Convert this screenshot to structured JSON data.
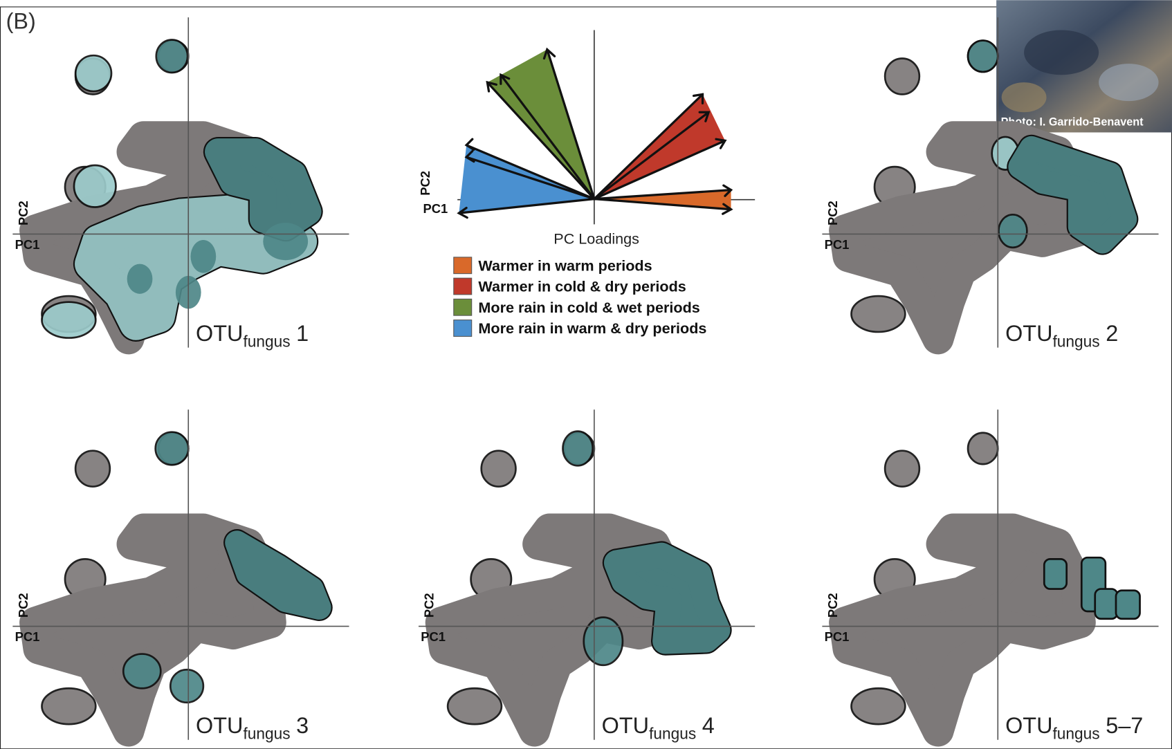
{
  "figure_label": "(B)",
  "photo_credit": "Photo: I. Garrido-Benavent",
  "axis_labels": {
    "y": "PC2",
    "x": "PC1"
  },
  "panels": [
    {
      "name": "OTU",
      "subscript": "fungus",
      "number": "1"
    },
    {
      "name": "OTU",
      "subscript": "fungus",
      "number": "2"
    },
    {
      "name": "OTU",
      "subscript": "fungus",
      "number": "3"
    },
    {
      "name": "OTU",
      "subscript": "fungus",
      "number": "4"
    },
    {
      "name": "OTU",
      "subscript": "fungus",
      "number": "5–7"
    }
  ],
  "loadings": {
    "title": "PC Loadings",
    "legend": [
      {
        "label": "Warmer in warm periods",
        "color": "#d9692a"
      },
      {
        "label": "Warmer in cold & dry periods",
        "color": "#c0392b"
      },
      {
        "label": "More rain in cold & wet periods",
        "color": "#6b8e3a"
      },
      {
        "label": "More rain in warm & dry periods",
        "color": "#4a90d0"
      }
    ]
  }
}
